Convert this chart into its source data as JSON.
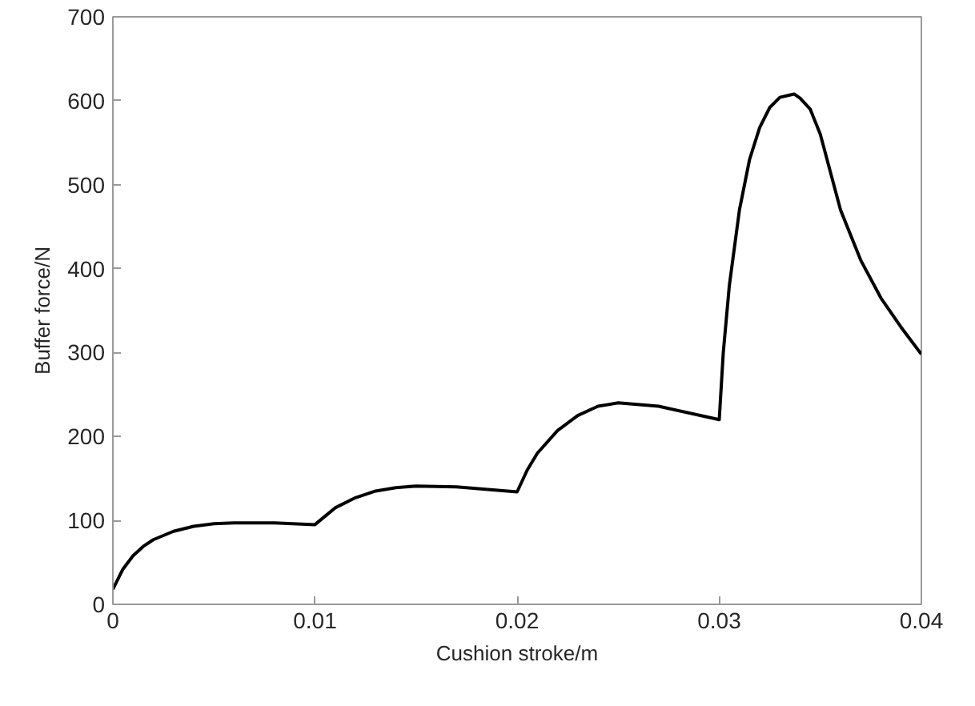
{
  "chart_data": {
    "type": "line",
    "xlabel": "Cushion stroke/m",
    "ylabel": "Buffer force/N",
    "x": [
      0,
      0.0005,
      0.001,
      0.0015,
      0.002,
      0.003,
      0.004,
      0.005,
      0.006,
      0.008,
      0.01,
      0.0105,
      0.011,
      0.012,
      0.013,
      0.014,
      0.015,
      0.017,
      0.02,
      0.0205,
      0.021,
      0.022,
      0.023,
      0.024,
      0.025,
      0.027,
      0.03,
      0.0302,
      0.0305,
      0.031,
      0.0315,
      0.032,
      0.0325,
      0.033,
      0.0337,
      0.034,
      0.0345,
      0.035,
      0.0355,
      0.036,
      0.037,
      0.038,
      0.039,
      0.04
    ],
    "series": [
      {
        "color": "#000000",
        "values": [
          18,
          42,
          58,
          69,
          77,
          87,
          93,
          96,
          97,
          97,
          95,
          105,
          115,
          127,
          135,
          139,
          141,
          140,
          134,
          160,
          180,
          207,
          225,
          236,
          240,
          236,
          220,
          300,
          380,
          470,
          530,
          568,
          592,
          604,
          608,
          603,
          590,
          560,
          515,
          470,
          410,
          365,
          330,
          298
        ]
      }
    ],
    "xlim": [
      0,
      0.04
    ],
    "ylim": [
      0,
      700
    ],
    "xticks": [
      0,
      0.01,
      0.02,
      0.03,
      0.04
    ],
    "yticks": [
      0,
      100,
      200,
      300,
      400,
      500,
      600,
      700
    ],
    "grid": false,
    "line_style": "solid",
    "marker": "none"
  }
}
